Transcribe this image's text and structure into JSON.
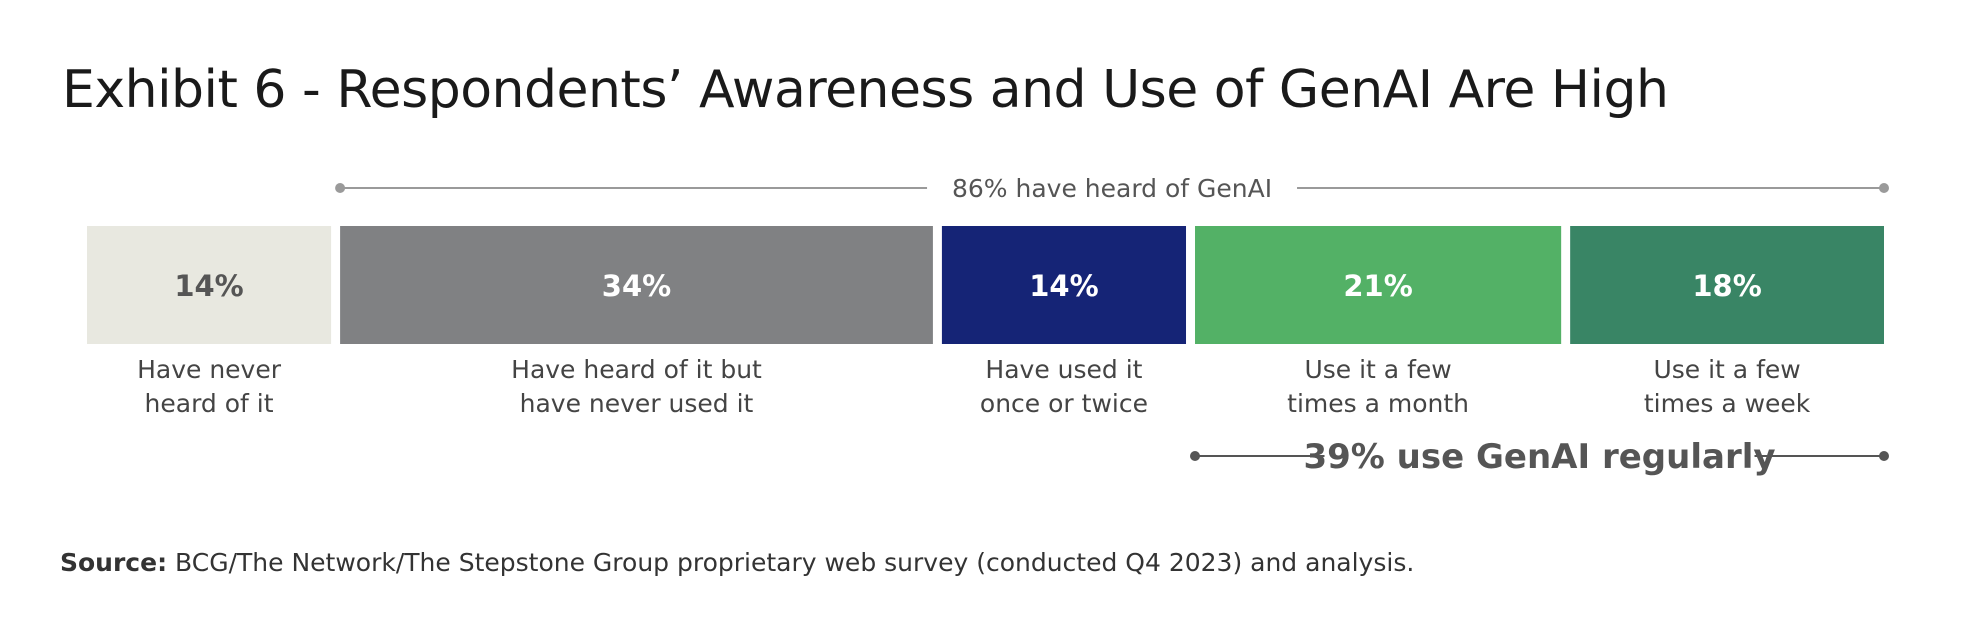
{
  "title": "Exhibit 6 - Respondents’ Awareness and Use of GenAI Are High",
  "source": {
    "label": "Source:",
    "text": "BCG/The Network/The Stepstone Group proprietary web survey (conducted Q4 2023) and analysis."
  },
  "chart_data": {
    "type": "bar",
    "orientation": "horizontal-stacked",
    "title": "",
    "segments": [
      {
        "label_lines": [
          "Have never",
          "heard of it"
        ],
        "value": 14,
        "value_label": "14%",
        "color": "#e8e8e0",
        "label_color": "#555555"
      },
      {
        "label_lines": [
          "Have heard of it but",
          "have never used it"
        ],
        "value": 34,
        "value_label": "34%",
        "color": "#808183",
        "label_color": "#ffffff"
      },
      {
        "label_lines": [
          "Have used it",
          "once or twice"
        ],
        "value": 14,
        "value_label": "14%",
        "color": "#152476",
        "label_color": "#ffffff"
      },
      {
        "label_lines": [
          "Use it a few",
          "times a month"
        ],
        "value": 21,
        "value_label": "21%",
        "color": "#53b166",
        "label_color": "#ffffff"
      },
      {
        "label_lines": [
          "Use it a few",
          "times a week"
        ],
        "value": 18,
        "value_label": "18%",
        "color": "#398565",
        "label_color": "#ffffff"
      }
    ],
    "brackets": [
      {
        "text": "86% have heard of GenAI",
        "from_segment": 1,
        "to_segment": 4,
        "position": "above"
      },
      {
        "text": "39% use GenAI regularly",
        "from_segment": 3,
        "to_segment": 4,
        "position": "below"
      }
    ]
  }
}
